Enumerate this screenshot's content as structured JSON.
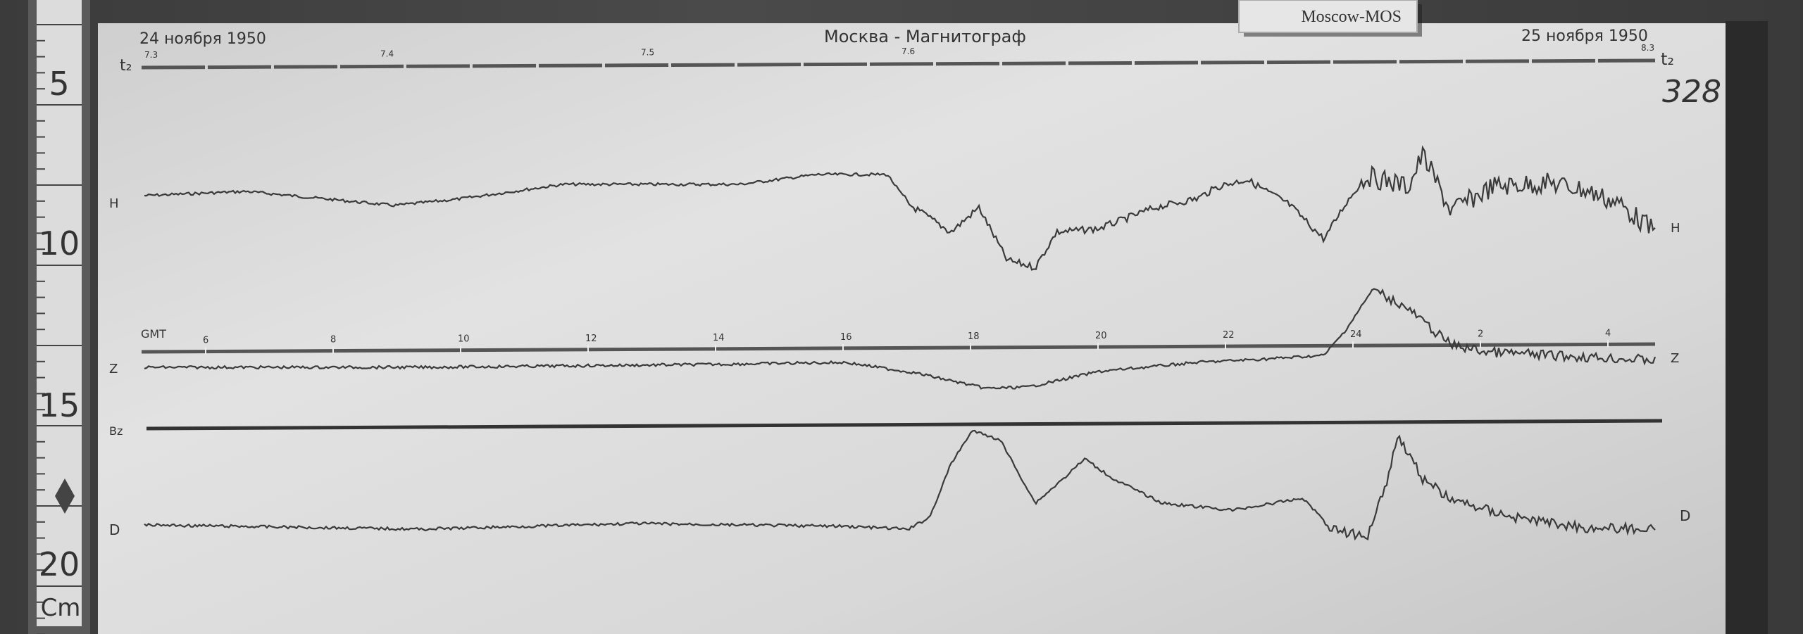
{
  "ruler": {
    "marks": [
      "5",
      "10",
      "15",
      "20"
    ],
    "unit": "Cm"
  },
  "sheet": {
    "station_label": "Moscow-MOS",
    "date_start": "24 ноября 1950",
    "header_center": "Москва - Магнитограф",
    "date_end": "25 ноября 1950",
    "sheet_number": "328",
    "time_line_label": "t₂",
    "time_ticks": [
      "7.3",
      "7.4",
      "7.5",
      "7.6",
      "8.3"
    ],
    "gmt_label": "GMT",
    "gmt_ticks": [
      "6",
      "8",
      "10",
      "12",
      "14",
      "16",
      "18",
      "20",
      "22",
      "24",
      "2",
      "4"
    ]
  },
  "chart_data": {
    "type": "line",
    "title": "",
    "xlabel": "GMT",
    "x_ticks": [
      "6",
      "8",
      "10",
      "12",
      "14",
      "16",
      "18",
      "20",
      "22",
      "24",
      "2",
      "4"
    ],
    "grid": false,
    "series": [
      {
        "name": "H",
        "description_level": "baseline with storm from ~17 GMT, deep dip ~19 GMT, strong oscillations after 24 GMT"
      },
      {
        "name": "Z",
        "description_level": "flat, dip ~19 GMT, sharp rise ~24 GMT"
      },
      {
        "name": "D",
        "description_level": "flat, large peaks ~18 and ~20 GMT, sharp peak ~1 GMT"
      }
    ],
    "baseline_labels": [
      "H",
      "Z",
      "D",
      "Bz"
    ],
    "colors": {
      "paper": "#d6d6d6",
      "trace": "#3a3a3a"
    }
  }
}
